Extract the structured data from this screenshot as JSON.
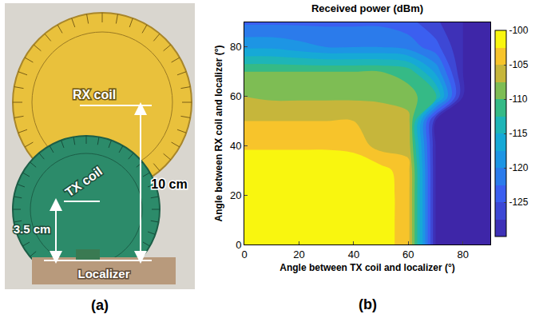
{
  "panel_a": {
    "panel_label": "(a)",
    "labels": {
      "rx_coil": "RX coil",
      "tx_coil": "TX coil",
      "localizer": "Localizer",
      "rx_distance": "10 cm",
      "tx_distance": "3.5 cm"
    }
  },
  "chart_data": {
    "type": "contour",
    "panel_label": "(b)",
    "title": "Received power (dBm)",
    "x_label": "Angle between TX coil and localizer (°)",
    "y_label": "Angle between RX coil and localizer (°)",
    "x": [
      0,
      10,
      20,
      30,
      40,
      50,
      60,
      70,
      80,
      90
    ],
    "y": [
      0,
      10,
      20,
      30,
      40,
      50,
      60,
      70,
      80,
      90
    ],
    "z": [
      [
        -100,
        -100,
        -100,
        -100,
        -100,
        -101,
        -104,
        -130,
        -130,
        -130
      ],
      [
        -100,
        -100,
        -100,
        -100,
        -100,
        -101,
        -104,
        -130,
        -130,
        -130
      ],
      [
        -100,
        -100,
        -100,
        -100,
        -100,
        -101,
        -104,
        -130,
        -130,
        -130
      ],
      [
        -100,
        -100,
        -100,
        -100,
        -100,
        -101.5,
        -104,
        -130,
        -130,
        -130
      ],
      [
        -103,
        -103,
        -103,
        -103,
        -103.5,
        -106,
        -106,
        -130,
        -130,
        -130
      ],
      [
        -105,
        -105,
        -105,
        -105,
        -105,
        -106,
        -106.5,
        -130,
        -130,
        -130
      ],
      [
        -107.5,
        -108,
        -108,
        -108,
        -108,
        -108,
        -109,
        -112,
        -130,
        -130
      ],
      [
        -110,
        -110,
        -110,
        -110,
        -110,
        -110,
        -111,
        -118,
        -130,
        -130
      ],
      [
        -118,
        -118,
        -119,
        -120,
        -120,
        -120,
        -121,
        -124,
        -130,
        -130
      ],
      [
        -123,
        -123,
        -123,
        -123,
        -123,
        -123,
        -124,
        -127,
        -130,
        -130
      ]
    ],
    "xlim": [
      0,
      90
    ],
    "ylim": [
      0,
      90
    ],
    "xticks": [
      0,
      20,
      40,
      60,
      80
    ],
    "yticks": [
      0,
      20,
      40,
      60,
      80
    ],
    "colorbar": {
      "range": [
        -130,
        -100
      ],
      "ticks": [
        -125,
        -120,
        -115,
        -110,
        -105,
        -100
      ]
    },
    "grid": true
  }
}
